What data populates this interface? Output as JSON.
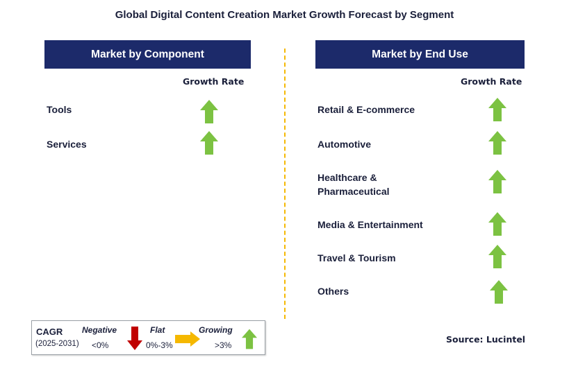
{
  "title": "Global Digital Content Creation Market Growth Forecast by Segment",
  "left_panel": {
    "header": "Market by Component",
    "growth_header": "Growth Rate",
    "items": [
      {
        "label": "Tools",
        "trend": "growing"
      },
      {
        "label": "Services",
        "trend": "growing"
      }
    ]
  },
  "right_panel": {
    "header": "Market by End Use",
    "growth_header": "Growth Rate",
    "items": [
      {
        "label": "Retail & E-commerce",
        "trend": "growing"
      },
      {
        "label": "Automotive",
        "trend": "growing"
      },
      {
        "label": "Healthcare & Pharmaceutical",
        "trend": "growing"
      },
      {
        "label": "Media & Entertainment",
        "trend": "growing"
      },
      {
        "label": "Travel & Tourism",
        "trend": "growing"
      },
      {
        "label": "Others",
        "trend": "growing"
      }
    ]
  },
  "legend": {
    "cagr": "CAGR",
    "period": "(2025-2031)",
    "negative_label": "Negative",
    "negative_range": "<0%",
    "flat_label": "Flat",
    "flat_range": "0%-3%",
    "growing_label": "Growing",
    "growing_range": ">3%"
  },
  "source": "Source: Lucintel",
  "colors": {
    "header_bg": "#1c2a6a",
    "growing": "#7cc242",
    "negative": "#c00000",
    "flat": "#f5b800",
    "divider": "#f5b800"
  }
}
